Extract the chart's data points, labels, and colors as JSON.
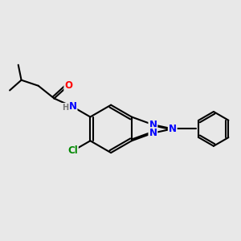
{
  "background_color": "#e8e8e8",
  "bond_color": "#000000",
  "bond_width": 1.5,
  "atom_colors": {
    "N": "#0000ff",
    "O": "#ff0000",
    "Cl": "#008800",
    "H": "#777777",
    "C": "#000000"
  },
  "font_size": 8.5,
  "figsize": [
    3.0,
    3.0
  ],
  "dpi": 100
}
